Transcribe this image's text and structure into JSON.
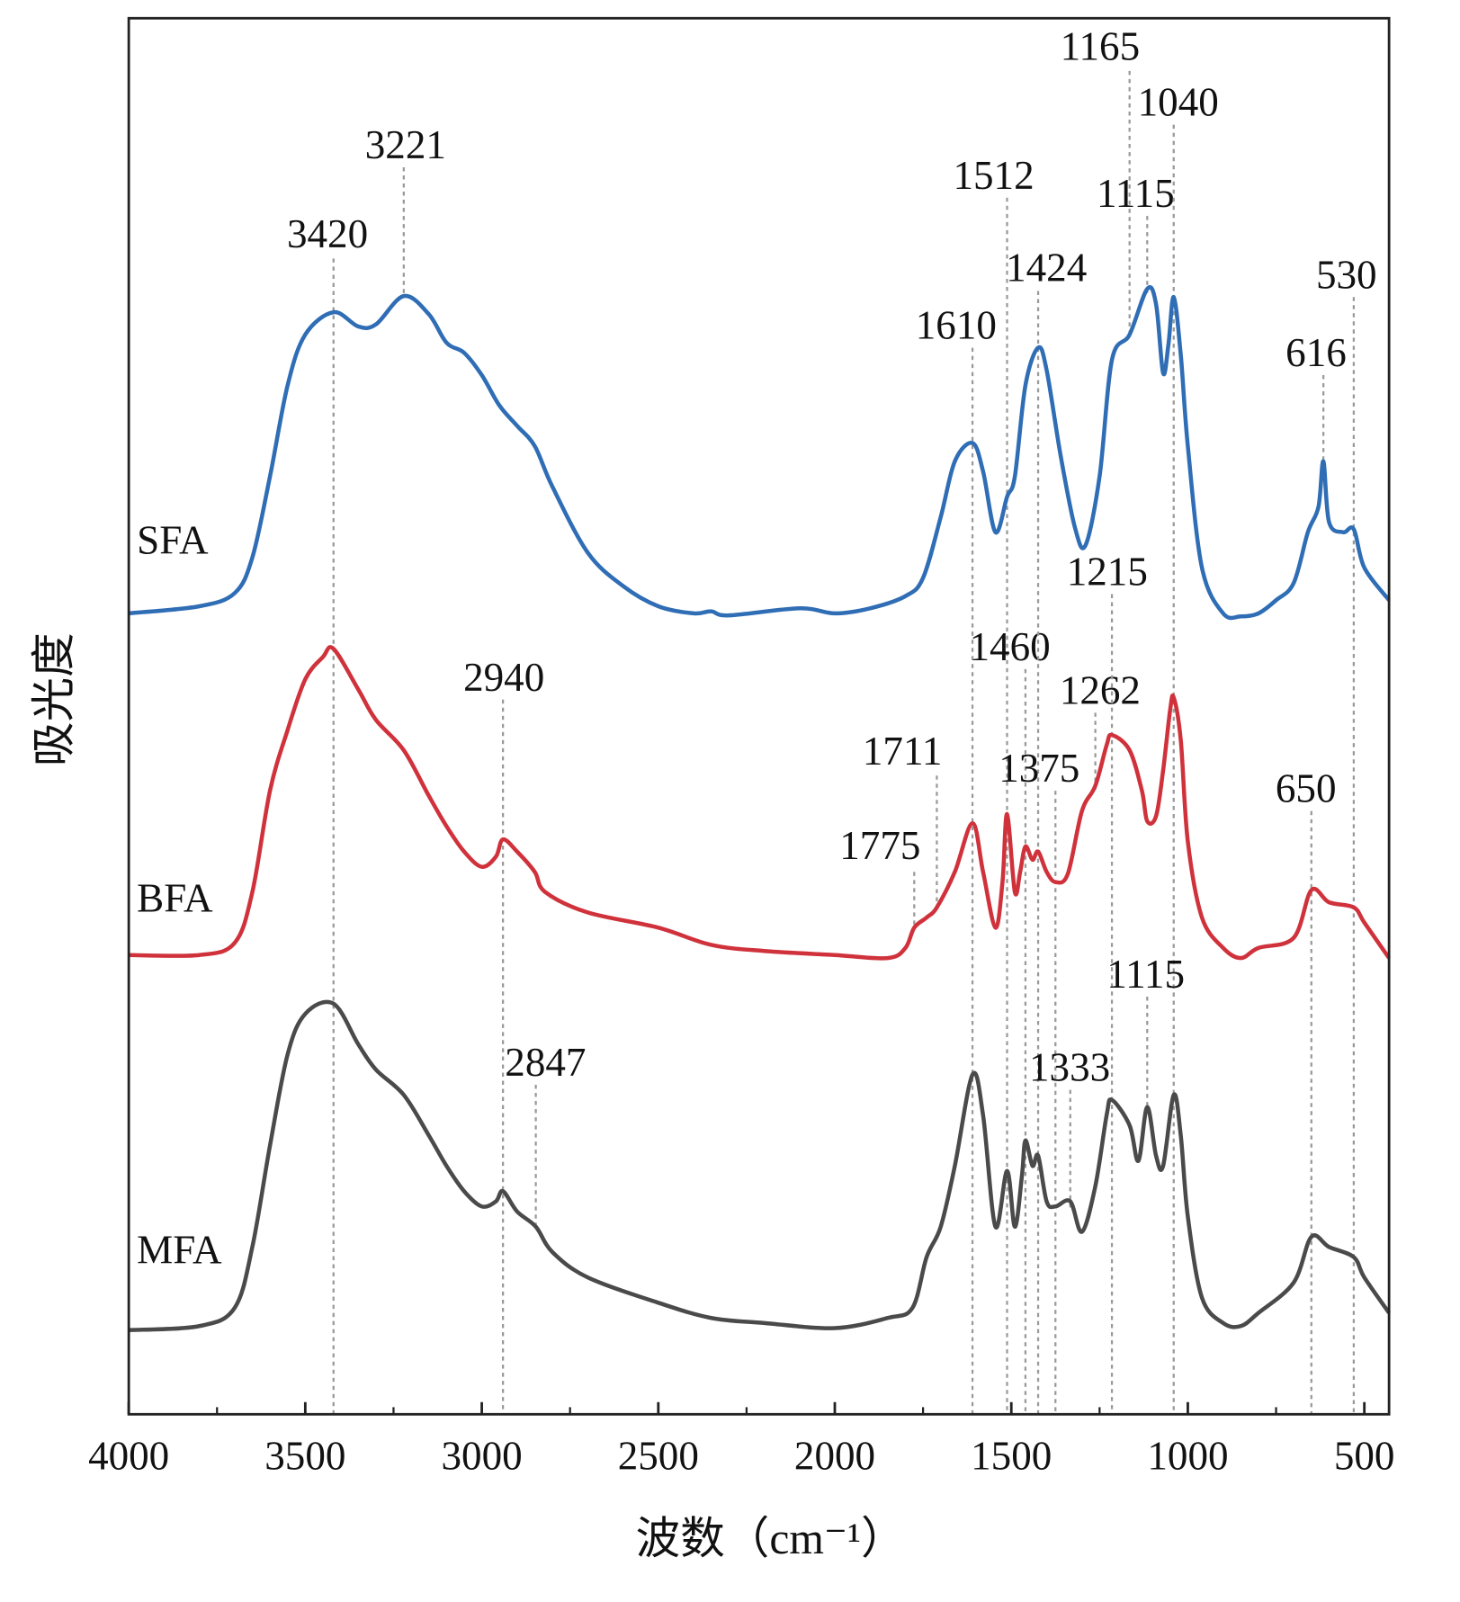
{
  "chart_data": {
    "type": "line",
    "x_label": "波数（cm⁻¹）",
    "y_label": "吸光度",
    "xlim": [
      4000,
      430
    ],
    "ylim": [
      0,
      1377
    ],
    "xticks": [
      4000,
      3500,
      3000,
      2500,
      2000,
      1500,
      1000,
      500
    ],
    "xticks_minor": [
      3750,
      3250,
      2750,
      2250,
      1750,
      1250,
      750
    ],
    "grid": false,
    "series": [
      {
        "name": "SFA",
        "color": "#2f6db5",
        "x": [
          4000,
          3800,
          3700,
          3650,
          3600,
          3550,
          3500,
          3420,
          3350,
          3300,
          3221,
          3150,
          3100,
          3050,
          3000,
          2950,
          2900,
          2850,
          2800,
          2700,
          2600,
          2500,
          2400,
          2350,
          2300,
          2100,
          2000,
          1900,
          1800,
          1750,
          1700,
          1660,
          1610,
          1580,
          1545,
          1512,
          1490,
          1460,
          1424,
          1400,
          1360,
          1320,
          1290,
          1250,
          1215,
          1165,
          1115,
          1090,
          1070,
          1055,
          1040,
          1020,
          1000,
          960,
          900,
          850,
          800,
          750,
          700,
          660,
          630,
          616,
          600,
          560,
          530,
          500,
          430
        ],
        "values": [
          790,
          797,
          810,
          845,
          925,
          1015,
          1065,
          1087,
          1073,
          1075,
          1103,
          1085,
          1057,
          1047,
          1025,
          995,
          975,
          955,
          915,
          850,
          817,
          797,
          790,
          792,
          788,
          795,
          790,
          795,
          807,
          825,
          885,
          940,
          958,
          930,
          870,
          905,
          925,
          1015,
          1052,
          1030,
          945,
          875,
          857,
          925,
          1040,
          1065,
          1110,
          1095,
          1027,
          1055,
          1102,
          1045,
          955,
          835,
          790,
          787,
          790,
          803,
          820,
          870,
          895,
          940,
          880,
          870,
          873,
          835,
          803
        ]
      },
      {
        "name": "BFA",
        "color": "#d0323c",
        "x": [
          4000,
          3800,
          3700,
          3650,
          3600,
          3550,
          3500,
          3450,
          3420,
          3350,
          3300,
          3221,
          3150,
          3100,
          3050,
          3000,
          2960,
          2940,
          2900,
          2850,
          2820,
          2700,
          2500,
          2350,
          2200,
          2000,
          1850,
          1800,
          1775,
          1740,
          1711,
          1660,
          1610,
          1580,
          1545,
          1525,
          1512,
          1490,
          1475,
          1460,
          1440,
          1424,
          1400,
          1375,
          1340,
          1300,
          1262,
          1230,
          1215,
          1165,
          1130,
          1115,
          1090,
          1070,
          1050,
          1040,
          1020,
          1000,
          960,
          900,
          850,
          800,
          700,
          650,
          600,
          530,
          500,
          430
        ],
        "values": [
          453,
          453,
          465,
          515,
          615,
          675,
          725,
          747,
          755,
          715,
          685,
          655,
          610,
          580,
          555,
          540,
          550,
          567,
          555,
          535,
          515,
          495,
          480,
          463,
          457,
          453,
          450,
          460,
          480,
          490,
          500,
          535,
          583,
          535,
          480,
          525,
          592,
          515,
          535,
          560,
          547,
          555,
          535,
          525,
          533,
          595,
          620,
          660,
          670,
          655,
          615,
          585,
          590,
          635,
          695,
          707,
          665,
          565,
          490,
          460,
          450,
          460,
          470,
          517,
          505,
          500,
          485,
          450
        ]
      },
      {
        "name": "MFA",
        "color": "#4a4a4a",
        "x": [
          4000,
          3800,
          3700,
          3650,
          3600,
          3550,
          3500,
          3420,
          3350,
          3300,
          3221,
          3150,
          3100,
          3050,
          3000,
          2960,
          2940,
          2900,
          2847,
          2800,
          2700,
          2500,
          2350,
          2200,
          2000,
          1850,
          1780,
          1740,
          1700,
          1660,
          1610,
          1580,
          1545,
          1512,
          1490,
          1470,
          1460,
          1440,
          1424,
          1400,
          1375,
          1333,
          1300,
          1262,
          1230,
          1215,
          1165,
          1140,
          1115,
          1090,
          1070,
          1040,
          1020,
          1000,
          960,
          900,
          850,
          800,
          700,
          650,
          600,
          530,
          500,
          430
        ],
        "values": [
          83,
          87,
          105,
          165,
          265,
          355,
          395,
          405,
          365,
          340,
          315,
          275,
          245,
          220,
          205,
          210,
          220,
          200,
          185,
          160,
          135,
          110,
          95,
          90,
          85,
          95,
          105,
          155,
          185,
          245,
          335,
          295,
          185,
          240,
          185,
          235,
          270,
          245,
          255,
          210,
          205,
          210,
          180,
          225,
          295,
          310,
          285,
          250,
          303,
          255,
          245,
          315,
          275,
          195,
          115,
          90,
          87,
          100,
          130,
          175,
          165,
          155,
          135,
          100
        ]
      }
    ],
    "annotations": [
      3420,
      3221,
      2940,
      2847,
      1775,
      1711,
      1610,
      1512,
      1460,
      1424,
      1375,
      1333,
      1262,
      1215,
      1165,
      1115,
      1040,
      1115,
      616,
      650,
      530
    ]
  }
}
